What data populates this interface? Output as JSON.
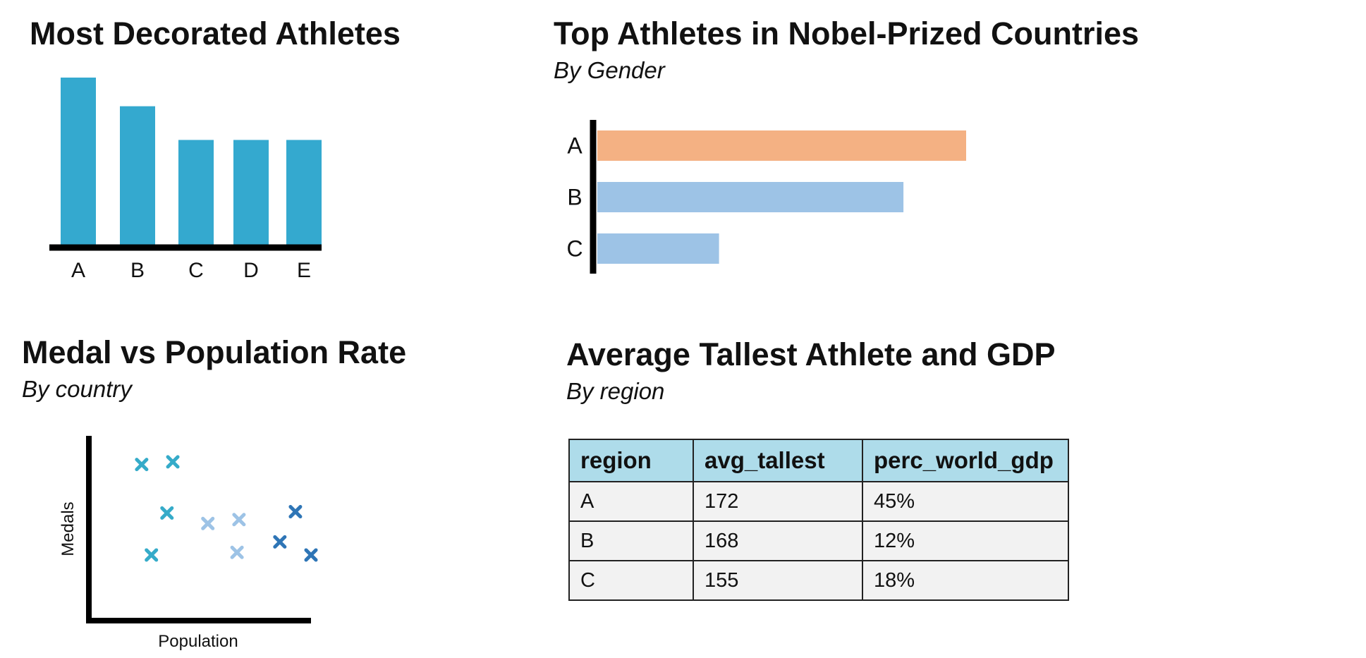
{
  "colors": {
    "bar_teal": "#34a9cf",
    "bar_orange": "#f4b183",
    "bar_light_blue": "#9dc3e6",
    "scatter_light": "#9dc3e6",
    "scatter_mid": "#35abc9",
    "scatter_dark": "#2e75b6",
    "table_header": "#aedcea",
    "table_cell": "#f2f2f2"
  },
  "chart_data": [
    {
      "type": "bar",
      "title": "Most Decorated Athletes",
      "categories": [
        "A",
        "B",
        "C",
        "D",
        "E"
      ],
      "values": [
        10,
        8.3,
        6.3,
        6.3,
        6.3
      ],
      "ylim": [
        0,
        10
      ]
    },
    {
      "type": "bar",
      "orientation": "horizontal",
      "title": "Top Athletes in Nobel-Prized Countries",
      "subtitle": "By Gender",
      "categories": [
        "A",
        "B",
        "C"
      ],
      "values": [
        100,
        83,
        33
      ],
      "bar_colors": [
        "#f4b183",
        "#9dc3e6",
        "#9dc3e6"
      ],
      "xlim": [
        0,
        100
      ]
    },
    {
      "type": "scatter",
      "title": "Medal vs Population Rate",
      "subtitle": "By country",
      "xlabel": "Population",
      "ylabel": "Medals",
      "xlim": [
        0,
        100
      ],
      "ylim": [
        0,
        100
      ],
      "marker": "x",
      "points": [
        {
          "x": 13,
          "y": 90,
          "group": "mid"
        },
        {
          "x": 29,
          "y": 92,
          "group": "mid"
        },
        {
          "x": 26,
          "y": 53,
          "group": "mid"
        },
        {
          "x": 18,
          "y": 21,
          "group": "mid"
        },
        {
          "x": 47,
          "y": 45,
          "group": "light"
        },
        {
          "x": 63,
          "y": 48,
          "group": "light"
        },
        {
          "x": 62,
          "y": 23,
          "group": "light"
        },
        {
          "x": 92,
          "y": 54,
          "group": "dark"
        },
        {
          "x": 84,
          "y": 31,
          "group": "dark"
        },
        {
          "x": 100,
          "y": 21,
          "group": "dark"
        }
      ]
    },
    {
      "type": "table",
      "title": "Average Tallest Athlete and GDP",
      "subtitle": "By region",
      "columns": [
        "region",
        "avg_tallest",
        "perc_world_gdp"
      ],
      "rows": [
        [
          "A",
          "172",
          "45%"
        ],
        [
          "B",
          "168",
          "12%"
        ],
        [
          "C",
          "155",
          "18%"
        ]
      ]
    }
  ]
}
